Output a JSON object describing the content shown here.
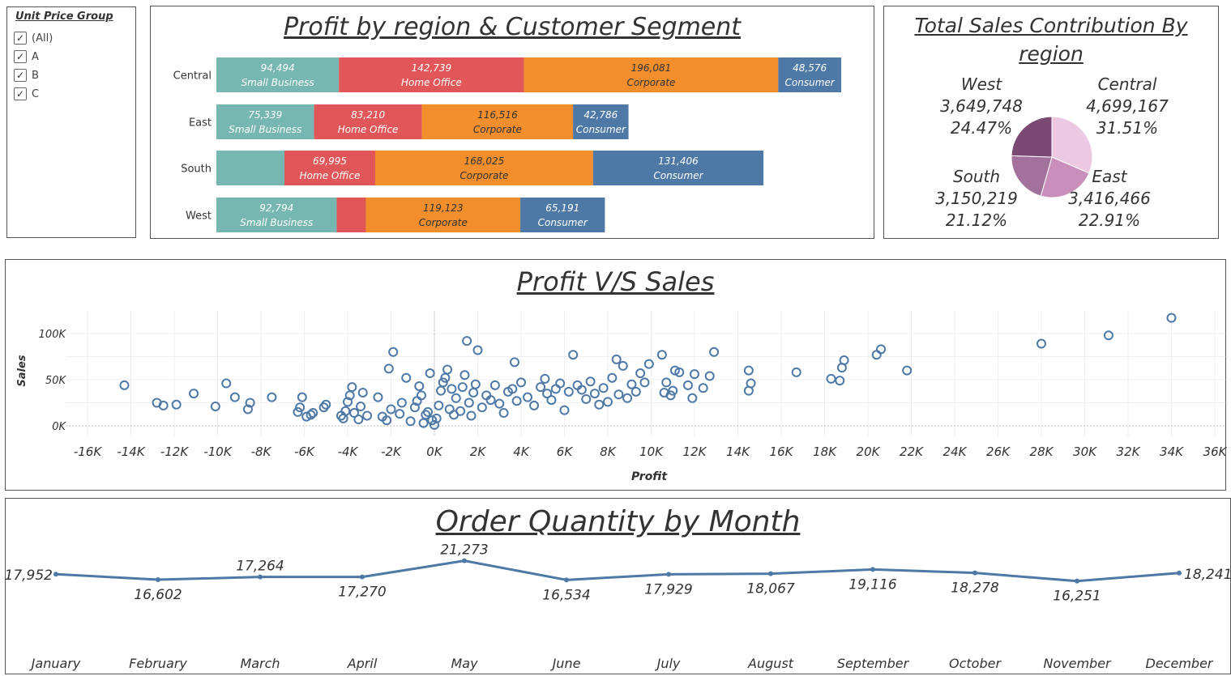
{
  "filter": {
    "title": "Unit Price Group",
    "items": [
      {
        "label": "(All)",
        "checked": true
      },
      {
        "label": "A",
        "checked": true
      },
      {
        "label": "B",
        "checked": true
      },
      {
        "label": "C",
        "checked": true
      }
    ]
  },
  "segment_colors": {
    "Small Business": "#76b7b2",
    "Home Office": "#e15759",
    "Corporate": "#f28e2b",
    "Consumer": "#4e79a7"
  },
  "pie_colors": {
    "Central": "#ecc8e2",
    "East": "#c98eb9",
    "South": "#a3729c",
    "West": "#7a4a74"
  },
  "line_color": "#4e79a7",
  "scatter_color": "#4e79a7",
  "chart_data": [
    {
      "type": "bar",
      "stacked": true,
      "orientation": "horizontal",
      "title": "Profit by region & Customer Segment",
      "categories": [
        "Central",
        "East",
        "South",
        "West"
      ],
      "series": [
        {
          "name": "Small Business",
          "values": [
            94494,
            75339,
            52500,
            92794
          ],
          "labels": [
            "94,494",
            "75,339",
            "",
            "92,794"
          ]
        },
        {
          "name": "Home Office",
          "values": [
            142739,
            83210,
            69995,
            22500
          ],
          "labels": [
            "142,739",
            "83,210",
            "69,995",
            ""
          ]
        },
        {
          "name": "Corporate",
          "values": [
            196081,
            116516,
            168025,
            119123
          ],
          "labels": [
            "196,081",
            "116,516",
            "168,025",
            "119,123"
          ]
        },
        {
          "name": "Consumer",
          "values": [
            48576,
            42786,
            131406,
            65191
          ],
          "labels": [
            "48,576",
            "42,786",
            "131,406",
            "65,191"
          ]
        }
      ]
    },
    {
      "type": "pie",
      "title": "Total Sales  Contribution By region",
      "slices": [
        {
          "name": "Central",
          "value": 4699167,
          "value_label": "4,699,167",
          "pct_label": "31.51%"
        },
        {
          "name": "East",
          "value": 3416466,
          "value_label": "3,416,466",
          "pct_label": "22.91%"
        },
        {
          "name": "South",
          "value": 3150219,
          "value_label": "3,150,219",
          "pct_label": "21.12%"
        },
        {
          "name": "West",
          "value": 3649748,
          "value_label": "3,649,748",
          "pct_label": "24.47%"
        }
      ]
    },
    {
      "type": "scatter",
      "title": "Profit V/S Sales",
      "xlabel": "Profit",
      "ylabel": "Sales",
      "xlim": [
        -17000,
        36500
      ],
      "ylim": [
        -12000,
        125000
      ],
      "xticks": [
        -16000,
        -14000,
        -12000,
        -10000,
        -8000,
        -6000,
        -4000,
        -2000,
        0,
        2000,
        4000,
        6000,
        8000,
        10000,
        12000,
        14000,
        16000,
        18000,
        20000,
        22000,
        24000,
        26000,
        28000,
        30000,
        32000,
        34000,
        36000
      ],
      "xtick_labels": [
        "-16K",
        "-14K",
        "-12K",
        "-10K",
        "-8K",
        "-6K",
        "-4K",
        "-2K",
        "0K",
        "2K",
        "4K",
        "6K",
        "8K",
        "10K",
        "12K",
        "14K",
        "16K",
        "18K",
        "20K",
        "22K",
        "24K",
        "26K",
        "28K",
        "30K",
        "32K",
        "34K",
        "36K"
      ],
      "yticks": [
        0,
        50000,
        100000
      ],
      "ytick_labels": [
        "0K",
        "50K",
        "100K"
      ],
      "grid": true,
      "points": [
        [
          -14300,
          44000
        ],
        [
          -12800,
          25000
        ],
        [
          -12500,
          22000
        ],
        [
          -11900,
          23000
        ],
        [
          -11100,
          35000
        ],
        [
          -10100,
          21000
        ],
        [
          -9600,
          46000
        ],
        [
          -9200,
          31000
        ],
        [
          -8600,
          18000
        ],
        [
          -8500,
          25000
        ],
        [
          -7500,
          31000
        ],
        [
          -6300,
          15000
        ],
        [
          -6200,
          20000
        ],
        [
          -6100,
          31000
        ],
        [
          -5900,
          10000
        ],
        [
          -5700,
          12000
        ],
        [
          -5600,
          14000
        ],
        [
          -5100,
          20000
        ],
        [
          -5000,
          23000
        ],
        [
          -4300,
          11000
        ],
        [
          -4200,
          8000
        ],
        [
          -4100,
          16000
        ],
        [
          -4000,
          26000
        ],
        [
          -3900,
          33000
        ],
        [
          -3800,
          42000
        ],
        [
          -3700,
          14000
        ],
        [
          -3500,
          7000
        ],
        [
          -3400,
          21000
        ],
        [
          -3300,
          36000
        ],
        [
          -3100,
          11000
        ],
        [
          -2600,
          31000
        ],
        [
          -2400,
          10000
        ],
        [
          -2200,
          6000
        ],
        [
          -2100,
          62000
        ],
        [
          -2000,
          18000
        ],
        [
          -1900,
          80000
        ],
        [
          -1600,
          13000
        ],
        [
          -1500,
          25000
        ],
        [
          -1300,
          52000
        ],
        [
          -1100,
          5000
        ],
        [
          -900,
          20000
        ],
        [
          -800,
          27000
        ],
        [
          -700,
          43000
        ],
        [
          -600,
          33000
        ],
        [
          -500,
          3000
        ],
        [
          -400,
          12000
        ],
        [
          -300,
          15000
        ],
        [
          -200,
          57000
        ],
        [
          -100,
          6000
        ],
        [
          0,
          1000
        ],
        [
          100,
          8000
        ],
        [
          200,
          22000
        ],
        [
          300,
          38000
        ],
        [
          400,
          47000
        ],
        [
          500,
          52000
        ],
        [
          600,
          61000
        ],
        [
          700,
          18000
        ],
        [
          800,
          40000
        ],
        [
          900,
          12000
        ],
        [
          1000,
          30000
        ],
        [
          1200,
          16000
        ],
        [
          1300,
          42000
        ],
        [
          1400,
          55000
        ],
        [
          1500,
          92000
        ],
        [
          1600,
          25000
        ],
        [
          1700,
          11000
        ],
        [
          1800,
          36000
        ],
        [
          1900,
          45000
        ],
        [
          2000,
          82000
        ],
        [
          2200,
          20000
        ],
        [
          2400,
          33000
        ],
        [
          2600,
          28000
        ],
        [
          2800,
          44000
        ],
        [
          3000,
          24000
        ],
        [
          3200,
          14000
        ],
        [
          3400,
          37000
        ],
        [
          3600,
          40000
        ],
        [
          3700,
          69000
        ],
        [
          3800,
          27000
        ],
        [
          4000,
          47000
        ],
        [
          4300,
          31000
        ],
        [
          4600,
          22000
        ],
        [
          4900,
          42000
        ],
        [
          5100,
          51000
        ],
        [
          5200,
          35000
        ],
        [
          5400,
          28000
        ],
        [
          5600,
          40000
        ],
        [
          5800,
          46000
        ],
        [
          6000,
          17000
        ],
        [
          6200,
          37000
        ],
        [
          6400,
          77000
        ],
        [
          6600,
          44000
        ],
        [
          6800,
          39000
        ],
        [
          7000,
          29000
        ],
        [
          7200,
          48000
        ],
        [
          7400,
          35000
        ],
        [
          7600,
          23000
        ],
        [
          7800,
          41000
        ],
        [
          8000,
          26000
        ],
        [
          8200,
          52000
        ],
        [
          8400,
          72000
        ],
        [
          8500,
          34000
        ],
        [
          8700,
          65000
        ],
        [
          8900,
          30000
        ],
        [
          9100,
          45000
        ],
        [
          9300,
          37000
        ],
        [
          9500,
          57000
        ],
        [
          9700,
          47000
        ],
        [
          9900,
          67000
        ],
        [
          10500,
          77000
        ],
        [
          10600,
          36000
        ],
        [
          10700,
          47000
        ],
        [
          10900,
          33000
        ],
        [
          11000,
          38000
        ],
        [
          11100,
          60000
        ],
        [
          11300,
          58000
        ],
        [
          11700,
          44000
        ],
        [
          11900,
          30000
        ],
        [
          12000,
          56000
        ],
        [
          12400,
          41000
        ],
        [
          12700,
          54000
        ],
        [
          12900,
          80000
        ],
        [
          14500,
          38000
        ],
        [
          14600,
          46000
        ],
        [
          14500,
          60000
        ],
        [
          16700,
          58000
        ],
        [
          18300,
          51000
        ],
        [
          18700,
          49000
        ],
        [
          18800,
          63000
        ],
        [
          18900,
          71000
        ],
        [
          20400,
          77000
        ],
        [
          20600,
          83000
        ],
        [
          21800,
          60000
        ],
        [
          28000,
          89000
        ],
        [
          31100,
          98000
        ],
        [
          34000,
          117000
        ]
      ]
    },
    {
      "type": "line",
      "title": "Order Quantity by Month",
      "categories": [
        "January",
        "February",
        "March",
        "April",
        "May",
        "June",
        "July",
        "August",
        "September",
        "October",
        "November",
        "December"
      ],
      "values": [
        17952,
        16602,
        17264,
        17270,
        21273,
        16534,
        17929,
        18067,
        19116,
        18278,
        16251,
        18241
      ],
      "value_labels": [
        "17,952",
        "16,602",
        "17,264",
        "17,270",
        "21,273",
        "16,534",
        "17,929",
        "18,067",
        "19,116",
        "18,278",
        "16,251",
        "18,241"
      ]
    }
  ]
}
